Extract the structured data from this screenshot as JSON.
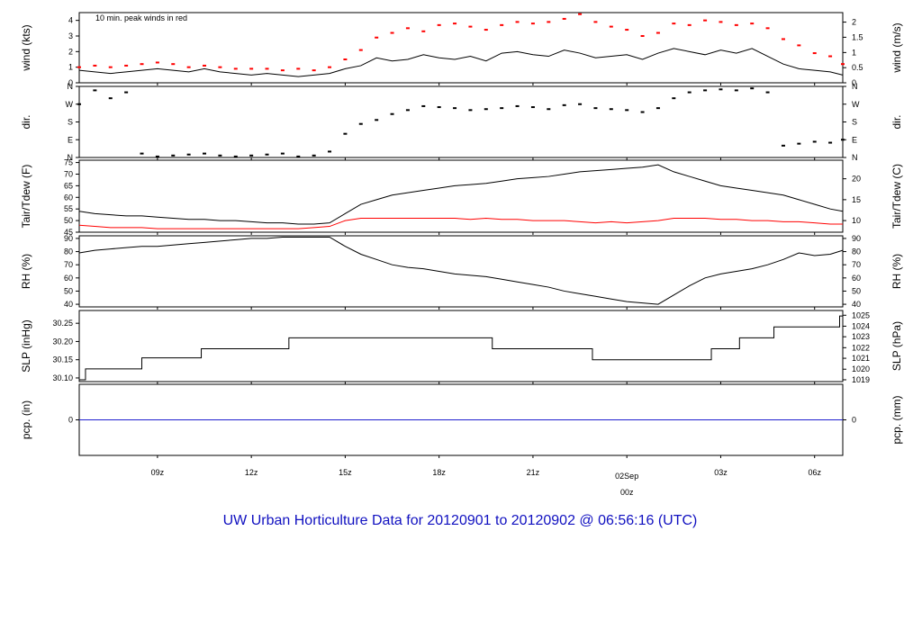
{
  "title": "UW Urban Horticulture Data for 20120901  to  20120902 @ 06:56:16  (UTC)",
  "colors": {
    "axis": "#000000",
    "peak": "#ff0000",
    "dew": "#ff0000",
    "precip": "#2020d0",
    "title": "#1010c0",
    "date_label": "#ff0000"
  },
  "time_axis": {
    "range_hours": [
      6.5,
      30.9
    ],
    "ticks": [
      {
        "h": 9,
        "label": "09z"
      },
      {
        "h": 12,
        "label": "12z"
      },
      {
        "h": 15,
        "label": "15z"
      },
      {
        "h": 18,
        "label": "18z"
      },
      {
        "h": 21,
        "label": "21z"
      },
      {
        "h": 24,
        "label": "00z"
      },
      {
        "h": 27,
        "label": "03z"
      },
      {
        "h": 30,
        "label": "06z"
      }
    ],
    "date_label": "02Sep",
    "date_label_hour": 24
  },
  "chart_data": [
    {
      "id": "wind",
      "type": "line",
      "ylabel_left": "wind (kts)",
      "ylabel_right": "wind (m/s)",
      "ylim": [
        0,
        4.5
      ],
      "left_ticks": [
        0,
        1,
        2,
        3,
        4
      ],
      "right_ticks": [
        {
          "v": 0,
          "label": "0"
        },
        {
          "v": 0.97,
          "label": "0.5"
        },
        {
          "v": 1.94,
          "label": "1"
        },
        {
          "v": 2.92,
          "label": "1.5"
        },
        {
          "v": 3.89,
          "label": "2"
        }
      ],
      "annotation": "10 min. peak winds in red",
      "series": [
        {
          "name": "wind",
          "x": [
            6.5,
            7,
            7.5,
            8,
            8.5,
            9,
            9.5,
            10,
            10.5,
            11,
            11.5,
            12,
            12.5,
            13,
            13.5,
            14,
            14.5,
            15,
            15.5,
            16,
            16.5,
            17,
            17.5,
            18,
            18.5,
            19,
            19.5,
            20,
            20.5,
            21,
            21.5,
            22,
            22.5,
            23,
            23.5,
            24,
            24.5,
            25,
            25.5,
            26,
            26.5,
            27,
            27.5,
            28,
            28.5,
            29,
            29.5,
            30,
            30.5,
            30.9
          ],
          "y": [
            0.8,
            0.7,
            0.6,
            0.7,
            0.8,
            0.9,
            0.8,
            0.7,
            0.9,
            0.7,
            0.6,
            0.5,
            0.6,
            0.5,
            0.4,
            0.5,
            0.6,
            0.9,
            1.1,
            1.6,
            1.4,
            1.5,
            1.8,
            1.6,
            1.5,
            1.7,
            1.4,
            1.9,
            2.0,
            1.8,
            1.7,
            2.1,
            1.9,
            1.6,
            1.7,
            1.8,
            1.5,
            1.9,
            2.2,
            2.0,
            1.8,
            2.1,
            1.9,
            2.2,
            1.7,
            1.2,
            0.9,
            0.8,
            0.7,
            0.5
          ]
        },
        {
          "name": "peak",
          "x": [
            6.5,
            7,
            7.5,
            8,
            8.5,
            9,
            9.5,
            10,
            10.5,
            11,
            11.5,
            12,
            12.5,
            13,
            13.5,
            14,
            14.5,
            15,
            15.5,
            16,
            16.5,
            17,
            17.5,
            18,
            18.5,
            19,
            19.5,
            20,
            20.5,
            21,
            21.5,
            22,
            22.5,
            23,
            23.5,
            24,
            24.5,
            25,
            25.5,
            26,
            26.5,
            27,
            27.5,
            28,
            28.5,
            29,
            29.5,
            30,
            30.5,
            30.9
          ],
          "y": [
            1.0,
            1.1,
            1.0,
            1.1,
            1.2,
            1.3,
            1.2,
            1.0,
            1.1,
            1.0,
            0.9,
            0.9,
            0.9,
            0.8,
            0.9,
            0.8,
            1.0,
            1.5,
            2.1,
            2.9,
            3.2,
            3.5,
            3.3,
            3.7,
            3.8,
            3.6,
            3.4,
            3.7,
            3.9,
            3.8,
            3.9,
            4.1,
            4.4,
            3.9,
            3.6,
            3.4,
            3.0,
            3.2,
            3.8,
            3.7,
            4.0,
            3.9,
            3.7,
            3.8,
            3.5,
            2.8,
            2.4,
            1.9,
            1.7,
            1.2
          ]
        }
      ]
    },
    {
      "id": "dir",
      "type": "scatter",
      "ylabel_left": "dir.",
      "ylabel_right": "dir.",
      "ylim": [
        0,
        360
      ],
      "left_ticks": [
        {
          "v": 0,
          "label": "N"
        },
        {
          "v": 90,
          "label": "E"
        },
        {
          "v": 180,
          "label": "S"
        },
        {
          "v": 270,
          "label": "W"
        },
        {
          "v": 360,
          "label": "N"
        }
      ],
      "right_ticks": [
        {
          "v": 0,
          "label": "N"
        },
        {
          "v": 90,
          "label": "E"
        },
        {
          "v": 180,
          "label": "S"
        },
        {
          "v": 270,
          "label": "W"
        },
        {
          "v": 360,
          "label": "N"
        }
      ],
      "series": [
        {
          "name": "direction",
          "x": [
            6.5,
            7,
            7.5,
            8,
            8.5,
            9,
            9.5,
            10,
            10.5,
            11,
            11.5,
            12,
            12.5,
            13,
            13.5,
            14,
            14.5,
            15,
            15.5,
            16,
            16.5,
            17,
            17.5,
            18,
            18.5,
            19,
            19.5,
            20,
            20.5,
            21,
            21.5,
            22,
            22.5,
            23,
            23.5,
            24,
            24.5,
            25,
            25.5,
            26,
            26.5,
            27,
            27.5,
            28,
            28.5,
            29,
            29.5,
            30,
            30.5,
            30.9
          ],
          "y": [
            270,
            340,
            300,
            330,
            20,
            5,
            10,
            15,
            20,
            10,
            5,
            10,
            15,
            20,
            5,
            10,
            30,
            120,
            170,
            190,
            220,
            240,
            260,
            255,
            250,
            240,
            245,
            250,
            260,
            255,
            245,
            265,
            270,
            250,
            245,
            240,
            230,
            250,
            300,
            330,
            340,
            345,
            340,
            350,
            330,
            60,
            70,
            80,
            75,
            90
          ]
        }
      ]
    },
    {
      "id": "temp",
      "type": "line",
      "ylabel_left": "Tair/Tdew (F)",
      "ylabel_right": "Tair/Tdew (C)",
      "ylim": [
        45,
        76
      ],
      "left_ticks": [
        45,
        50,
        55,
        60,
        65,
        70,
        75
      ],
      "right_ticks": [
        {
          "v": 50,
          "label": "10"
        },
        {
          "v": 59,
          "label": "15"
        },
        {
          "v": 68,
          "label": "20"
        }
      ],
      "series": [
        {
          "name": "Tair",
          "x": [
            6.5,
            7,
            7.5,
            8,
            8.5,
            9,
            9.5,
            10,
            10.5,
            11,
            11.5,
            12,
            12.5,
            13,
            13.5,
            14,
            14.5,
            15,
            15.5,
            16,
            16.5,
            17,
            17.5,
            18,
            18.5,
            19,
            19.5,
            20,
            20.5,
            21,
            21.5,
            22,
            22.5,
            23,
            23.5,
            24,
            24.5,
            25,
            25.5,
            26,
            26.5,
            27,
            27.5,
            28,
            28.5,
            29,
            29.5,
            30,
            30.5,
            30.9
          ],
          "y": [
            54,
            53,
            52.5,
            52,
            52,
            51.5,
            51,
            50.5,
            50.5,
            50,
            50,
            49.5,
            49,
            49,
            48.5,
            48.5,
            49,
            53,
            57,
            59,
            61,
            62,
            63,
            64,
            65,
            65.5,
            66,
            67,
            68,
            68.5,
            69,
            70,
            71,
            71.5,
            72,
            72.5,
            73,
            74,
            71,
            69,
            67,
            65,
            64,
            63,
            62,
            61,
            59,
            57,
            55,
            54
          ]
        },
        {
          "name": "Tdew",
          "x": [
            6.5,
            7,
            7.5,
            8,
            8.5,
            9,
            9.5,
            10,
            10.5,
            11,
            11.5,
            12,
            12.5,
            13,
            13.5,
            14,
            14.5,
            15,
            15.5,
            16,
            16.5,
            17,
            17.5,
            18,
            18.5,
            19,
            19.5,
            20,
            20.5,
            21,
            21.5,
            22,
            22.5,
            23,
            23.5,
            24,
            24.5,
            25,
            25.5,
            26,
            26.5,
            27,
            27.5,
            28,
            28.5,
            29,
            29.5,
            30,
            30.5,
            30.9
          ],
          "y": [
            48,
            47.5,
            47,
            47,
            47,
            46.5,
            46.5,
            46.5,
            46.5,
            46.5,
            46.5,
            46.5,
            46.5,
            46.5,
            46.5,
            47,
            47.5,
            50,
            51,
            51,
            51,
            51,
            51,
            51,
            51,
            50.5,
            51,
            50.5,
            50.5,
            50,
            50,
            50,
            49.5,
            49,
            49.5,
            49,
            49.5,
            50,
            51,
            51,
            51,
            50.5,
            50.5,
            50,
            50,
            49.5,
            49.5,
            49,
            48.5,
            48.5
          ]
        }
      ]
    },
    {
      "id": "rh",
      "type": "line",
      "ylabel_left": "RH (%)",
      "ylabel_right": "RH (%)",
      "ylim": [
        38,
        92
      ],
      "left_ticks": [
        40,
        50,
        60,
        70,
        80,
        90
      ],
      "right_ticks": [
        {
          "v": 40,
          "label": "40"
        },
        {
          "v": 50,
          "label": "50"
        },
        {
          "v": 60,
          "label": "60"
        },
        {
          "v": 70,
          "label": "70"
        },
        {
          "v": 80,
          "label": "80"
        },
        {
          "v": 90,
          "label": "90"
        }
      ],
      "series": [
        {
          "name": "RH",
          "x": [
            6.5,
            7,
            7.5,
            8,
            8.5,
            9,
            9.5,
            10,
            10.5,
            11,
            11.5,
            12,
            12.5,
            13,
            13.5,
            14,
            14.5,
            15,
            15.5,
            16,
            16.5,
            17,
            17.5,
            18,
            18.5,
            19,
            19.5,
            20,
            20.5,
            21,
            21.5,
            22,
            22.5,
            23,
            23.5,
            24,
            24.5,
            25,
            25.5,
            26,
            26.5,
            27,
            27.5,
            28,
            28.5,
            29,
            29.5,
            30,
            30.5,
            30.9
          ],
          "y": [
            79,
            81,
            82,
            83,
            84,
            84,
            85,
            86,
            87,
            88,
            89,
            90,
            90,
            91,
            91,
            91,
            91,
            84,
            78,
            74,
            70,
            68,
            67,
            65,
            63,
            62,
            61,
            59,
            57,
            55,
            53,
            50,
            48,
            46,
            44,
            42,
            41,
            40,
            47,
            54,
            60,
            63,
            65,
            67,
            70,
            74,
            79,
            77,
            78,
            81
          ]
        }
      ]
    },
    {
      "id": "slp",
      "type": "line",
      "ylabel_left": "SLP (inHg)",
      "ylabel_right": "SLP (hPa)",
      "ylim": [
        30.09,
        30.285
      ],
      "left_ticks": [
        {
          "v": 30.1,
          "label": "30.10"
        },
        {
          "v": 30.15,
          "label": "30.15"
        },
        {
          "v": 30.2,
          "label": "30.20"
        },
        {
          "v": 30.25,
          "label": "30.25"
        }
      ],
      "right_ticks": [
        {
          "v": 30.095,
          "label": "1019"
        },
        {
          "v": 30.124,
          "label": "1020"
        },
        {
          "v": 30.154,
          "label": "1021"
        },
        {
          "v": 30.183,
          "label": "1022"
        },
        {
          "v": 30.213,
          "label": "1023"
        },
        {
          "v": 30.242,
          "label": "1024"
        },
        {
          "v": 30.272,
          "label": "1025"
        }
      ],
      "series": [
        {
          "name": "SLP",
          "step": true,
          "x": [
            6.5,
            6.7,
            8.5,
            10.4,
            13.2,
            19.7,
            22.9,
            26.7,
            27.6,
            28.7,
            30.8,
            30.9
          ],
          "y": [
            30.095,
            30.125,
            30.155,
            30.18,
            30.21,
            30.18,
            30.15,
            30.18,
            30.21,
            30.24,
            30.27,
            30.27
          ]
        }
      ]
    },
    {
      "id": "pcp",
      "type": "line",
      "ylabel_left": "pcp. (in)",
      "ylabel_right": "pcp. (mm)",
      "ylim": [
        -1,
        1
      ],
      "left_ticks": [
        {
          "v": 0,
          "label": "0"
        }
      ],
      "right_ticks": [
        {
          "v": 0,
          "label": "0"
        }
      ],
      "series": [
        {
          "name": "precip",
          "x": [
            6.5,
            30.9
          ],
          "y": [
            0,
            0
          ]
        }
      ]
    }
  ]
}
